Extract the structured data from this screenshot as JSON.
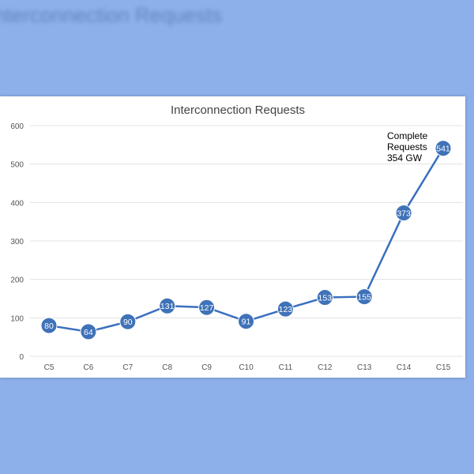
{
  "chart_data": {
    "type": "line",
    "title": "Interconnection Requests",
    "categories": [
      "C5",
      "C6",
      "C7",
      "C8",
      "C9",
      "C10",
      "C11",
      "C12",
      "C13",
      "C14",
      "C15"
    ],
    "values": [
      80,
      64,
      90,
      131,
      127,
      91,
      123,
      153,
      155,
      373,
      541
    ],
    "ylim": [
      0,
      600
    ],
    "yticks": [
      0,
      100,
      200,
      300,
      400,
      500,
      600
    ],
    "grid": true,
    "data_labels": true,
    "annotation": {
      "lines": [
        "Complete",
        "Requests",
        "354 GW"
      ],
      "near": "C15"
    },
    "colors": {
      "line": "#3a6fbf",
      "marker": "#3f72b8",
      "background": "#8eb0ea"
    }
  }
}
